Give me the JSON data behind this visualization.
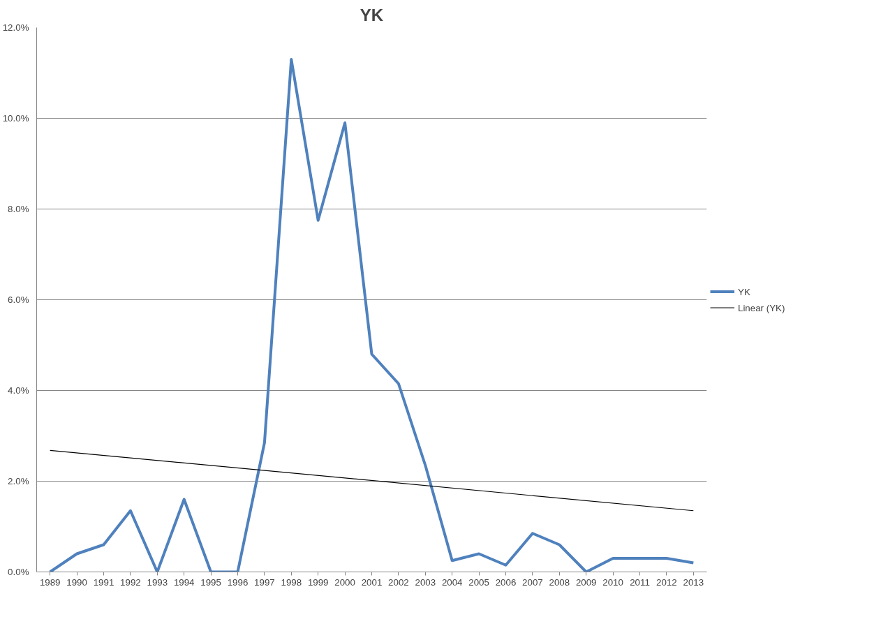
{
  "chart_data": {
    "type": "line",
    "title": "YK",
    "x": [
      1989,
      1990,
      1991,
      1992,
      1993,
      1994,
      1995,
      1996,
      1997,
      1998,
      1999,
      2000,
      2001,
      2002,
      2003,
      2004,
      2005,
      2006,
      2007,
      2008,
      2009,
      2010,
      2011,
      2012,
      2013
    ],
    "xlim": [
      1988.5,
      2013.5
    ],
    "xticks": [
      1989,
      1990,
      1991,
      1992,
      1993,
      1994,
      1995,
      1996,
      1997,
      1998,
      1999,
      2000,
      2001,
      2002,
      2003,
      2004,
      2005,
      2006,
      2007,
      2008,
      2009,
      2010,
      2011,
      2012,
      2013
    ],
    "ylim": [
      0,
      12
    ],
    "yticks": [
      {
        "value": 0,
        "label": "0.0%"
      },
      {
        "value": 2,
        "label": "2.0%"
      },
      {
        "value": 4,
        "label": "4.0%"
      },
      {
        "value": 6,
        "label": "6.0%"
      },
      {
        "value": 8,
        "label": "8.0%"
      },
      {
        "value": 10,
        "label": "10.0%"
      },
      {
        "value": 12,
        "label": "12.0%"
      }
    ],
    "series": [
      {
        "name": "YK",
        "color": "#4f81bd",
        "values": [
          0,
          0.4,
          0.6,
          1.35,
          0,
          1.6,
          0,
          0,
          2.85,
          11.3,
          7.75,
          9.9,
          4.8,
          4.15,
          2.35,
          0.25,
          0.4,
          0.15,
          0.85,
          0.6,
          0,
          0.3,
          0.3,
          0.3,
          0.2
        ]
      },
      {
        "name": "Linear (YK)",
        "type": "line",
        "color": "#000000",
        "x": [
          1989,
          2013
        ],
        "values": [
          2.68,
          1.35
        ]
      }
    ],
    "grid": "y",
    "legend": "right",
    "marker": "none",
    "line_style": "solid"
  }
}
